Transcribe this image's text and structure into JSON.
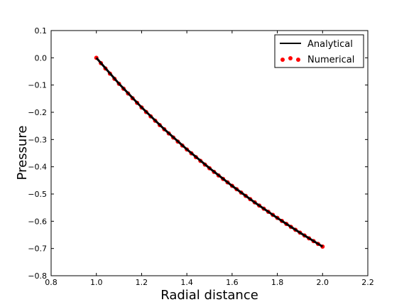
{
  "chart_data": {
    "type": "line",
    "xlabel": "Radial distance",
    "ylabel": "Pressure",
    "xlim": [
      0.8,
      2.2
    ],
    "ylim": [
      -0.8,
      0.1
    ],
    "xticks": [
      0.8,
      1.0,
      1.2,
      1.4,
      1.6,
      1.8,
      2.0,
      2.2
    ],
    "yticks": [
      0.1,
      0.0,
      -0.1,
      -0.2,
      -0.3,
      -0.4,
      -0.5,
      -0.6,
      -0.7,
      -0.8
    ],
    "xtick_labels": [
      "0.8",
      "1.0",
      "1.2",
      "1.4",
      "1.6",
      "1.8",
      "2.0",
      "2.2"
    ],
    "ytick_labels": [
      "0.1",
      "0.0",
      "−0.1",
      "−0.2",
      "−0.3",
      "−0.4",
      "−0.5",
      "−0.6",
      "−0.7",
      "−0.8"
    ],
    "grid": false,
    "legend_position": "top-right",
    "series": [
      {
        "name": "Analytical",
        "style": "line",
        "color": "#000000",
        "x": [
          1.0,
          1.1,
          1.2,
          1.3,
          1.4,
          1.5,
          1.6,
          1.7,
          1.8,
          1.9,
          2.0
        ],
        "y": [
          0.0,
          -0.095,
          -0.182,
          -0.262,
          -0.336,
          -0.405,
          -0.47,
          -0.531,
          -0.588,
          -0.642,
          -0.693
        ]
      },
      {
        "name": "Numerical",
        "style": "markers",
        "color": "#ff0000",
        "x": [
          1.0,
          1.02,
          1.04,
          1.06,
          1.08,
          1.1,
          1.12,
          1.14,
          1.16,
          1.18,
          1.2,
          1.22,
          1.24,
          1.26,
          1.28,
          1.3,
          1.32,
          1.34,
          1.36,
          1.38,
          1.4,
          1.42,
          1.44,
          1.46,
          1.48,
          1.5,
          1.52,
          1.54,
          1.56,
          1.58,
          1.6,
          1.62,
          1.64,
          1.66,
          1.68,
          1.7,
          1.72,
          1.74,
          1.76,
          1.78,
          1.8,
          1.82,
          1.84,
          1.86,
          1.88,
          1.9,
          1.92,
          1.94,
          1.96,
          1.98,
          2.0
        ],
        "y": [
          0.0,
          -0.0198,
          -0.0392,
          -0.0583,
          -0.077,
          -0.0953,
          -0.1133,
          -0.131,
          -0.1484,
          -0.1655,
          -0.1823,
          -0.1989,
          -0.2151,
          -0.2311,
          -0.2469,
          -0.2624,
          -0.2776,
          -0.2927,
          -0.3075,
          -0.3221,
          -0.3365,
          -0.3507,
          -0.3646,
          -0.3784,
          -0.392,
          -0.4055,
          -0.4187,
          -0.4318,
          -0.4447,
          -0.4574,
          -0.47,
          -0.4824,
          -0.4947,
          -0.5068,
          -0.5188,
          -0.5306,
          -0.5423,
          -0.5539,
          -0.5653,
          -0.5766,
          -0.5878,
          -0.5988,
          -0.6098,
          -0.6206,
          -0.6313,
          -0.6419,
          -0.6523,
          -0.6627,
          -0.6729,
          -0.6831,
          -0.6931
        ]
      }
    ]
  }
}
